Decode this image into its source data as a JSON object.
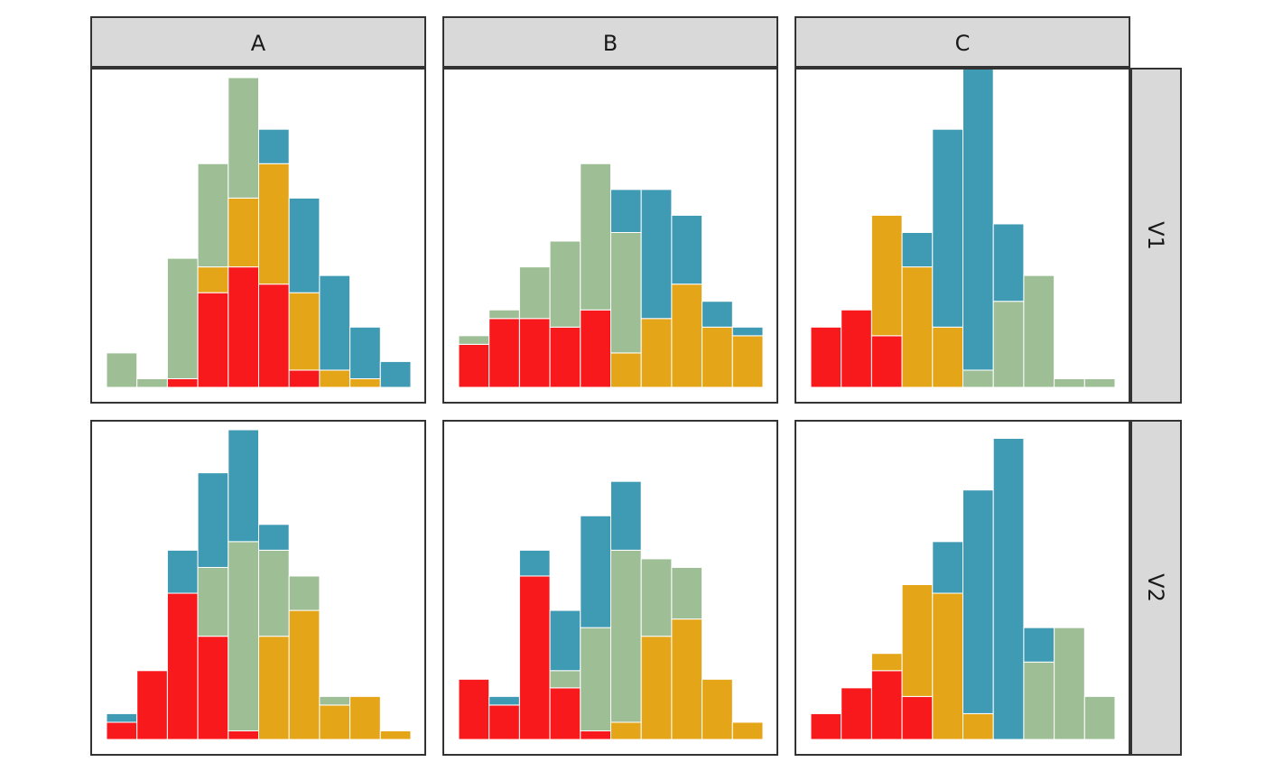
{
  "chart_data": {
    "type": "bar",
    "title": "",
    "xlabel": "",
    "ylabel": "",
    "facet_cols": [
      "A",
      "B",
      "C"
    ],
    "facet_rows": [
      "V1",
      "V2"
    ],
    "stack_order_bottom_to_top": [
      "red",
      "orange",
      "green",
      "blue"
    ],
    "ylim": [
      0,
      36
    ],
    "grid": false,
    "colors": {
      "red": "#f8191d",
      "orange": "#e5a519",
      "green": "#9ebf96",
      "blue": "#3f9ab4"
    },
    "panels": [
      {
        "row": "V1",
        "col": "A",
        "bins": 10,
        "series": [
          {
            "color": "red",
            "values": [
              0,
              0,
              1,
              11,
              14,
              12,
              2,
              0,
              0,
              0
            ]
          },
          {
            "color": "orange",
            "values": [
              0,
              0,
              0,
              3,
              8,
              14,
              9,
              2,
              1,
              0
            ]
          },
          {
            "color": "green",
            "values": [
              4,
              1,
              14,
              12,
              14,
              0,
              0,
              0,
              0,
              0
            ]
          },
          {
            "color": "blue",
            "values": [
              0,
              0,
              0,
              0,
              0,
              4,
              11,
              11,
              6,
              3
            ]
          }
        ]
      },
      {
        "row": "V1",
        "col": "B",
        "bins": 10,
        "series": [
          {
            "color": "red",
            "values": [
              5,
              8,
              8,
              7,
              9,
              0,
              0,
              0,
              0,
              0
            ]
          },
          {
            "color": "orange",
            "values": [
              0,
              0,
              0,
              0,
              0,
              4,
              8,
              12,
              7,
              6
            ]
          },
          {
            "color": "green",
            "values": [
              1,
              1,
              6,
              10,
              17,
              14,
              0,
              0,
              0,
              0
            ]
          },
          {
            "color": "blue",
            "values": [
              0,
              0,
              0,
              0,
              0,
              5,
              15,
              8,
              3,
              1
            ]
          }
        ]
      },
      {
        "row": "V1",
        "col": "C",
        "bins": 10,
        "series": [
          {
            "color": "red",
            "values": [
              7,
              9,
              6,
              0,
              0,
              0,
              0,
              0,
              0,
              0
            ]
          },
          {
            "color": "orange",
            "values": [
              0,
              0,
              14,
              14,
              7,
              0,
              0,
              0,
              0,
              0
            ]
          },
          {
            "color": "green",
            "values": [
              0,
              0,
              0,
              0,
              0,
              2,
              10,
              13,
              1,
              1
            ]
          },
          {
            "color": "blue",
            "values": [
              0,
              0,
              0,
              4,
              23,
              35,
              9,
              0,
              0,
              0
            ]
          }
        ]
      },
      {
        "row": "V2",
        "col": "A",
        "bins": 10,
        "series": [
          {
            "color": "red",
            "values": [
              2,
              8,
              17,
              12,
              1,
              0,
              0,
              0,
              0,
              0
            ]
          },
          {
            "color": "orange",
            "values": [
              0,
              0,
              0,
              0,
              0,
              12,
              15,
              4,
              5,
              1
            ]
          },
          {
            "color": "green",
            "values": [
              0,
              0,
              0,
              8,
              22,
              10,
              4,
              1,
              0,
              0
            ]
          },
          {
            "color": "blue",
            "values": [
              1,
              0,
              5,
              11,
              13,
              3,
              0,
              0,
              0,
              0
            ]
          }
        ]
      },
      {
        "row": "V2",
        "col": "B",
        "bins": 10,
        "series": [
          {
            "color": "red",
            "values": [
              7,
              4,
              19,
              6,
              1,
              0,
              0,
              0,
              0,
              0
            ]
          },
          {
            "color": "orange",
            "values": [
              0,
              0,
              0,
              0,
              0,
              2,
              12,
              14,
              7,
              2
            ]
          },
          {
            "color": "green",
            "values": [
              0,
              0,
              0,
              2,
              12,
              20,
              9,
              6,
              0,
              0
            ]
          },
          {
            "color": "blue",
            "values": [
              0,
              1,
              3,
              7,
              13,
              8,
              0,
              0,
              0,
              0
            ]
          }
        ]
      },
      {
        "row": "V2",
        "col": "C",
        "bins": 10,
        "series": [
          {
            "color": "red",
            "values": [
              3,
              6,
              8,
              5,
              0,
              0,
              0,
              0,
              0,
              0
            ]
          },
          {
            "color": "orange",
            "values": [
              0,
              0,
              2,
              13,
              17,
              3,
              0,
              0,
              0,
              0
            ]
          },
          {
            "color": "green",
            "values": [
              0,
              0,
              0,
              0,
              0,
              0,
              0,
              9,
              13,
              5
            ]
          },
          {
            "color": "blue",
            "values": [
              0,
              0,
              0,
              0,
              6,
              26,
              35,
              4,
              0,
              0
            ]
          }
        ]
      }
    ]
  }
}
